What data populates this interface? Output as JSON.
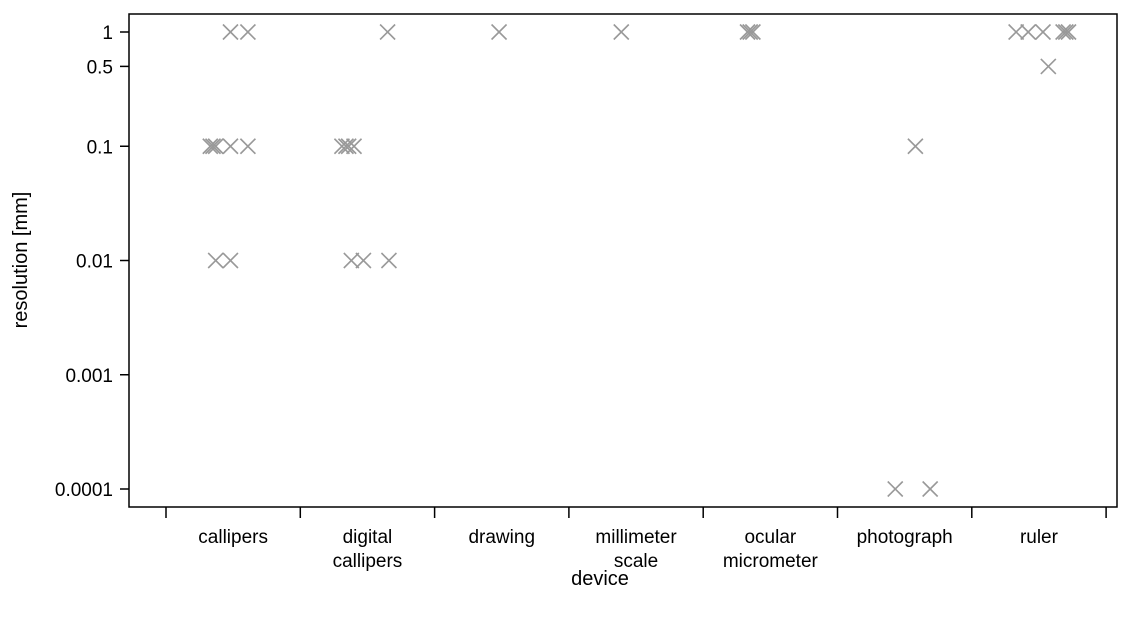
{
  "chart_data": {
    "type": "scatter",
    "xlabel": "device",
    "ylabel": "resolution [mm]",
    "y_scale": "log",
    "ylim": [
      0.0001,
      1
    ],
    "yticks": [
      "1",
      "0.5",
      "0.1",
      "0.01",
      "0.001",
      "0.0001"
    ],
    "ytick_values": [
      1,
      0.5,
      0.1,
      0.01,
      0.001,
      0.0001
    ],
    "categories": [
      [
        "callipers"
      ],
      [
        "digital",
        "callipers"
      ],
      [
        "drawing"
      ],
      [
        "millimeter",
        "scale"
      ],
      [
        "ocular",
        "micrometer"
      ],
      [
        "photograph"
      ],
      [
        "ruler"
      ]
    ],
    "marker": "x",
    "marker_color": "#999999",
    "grid": false,
    "points": [
      {
        "category": 0,
        "jitter": 0.48,
        "y": 1
      },
      {
        "category": 0,
        "jitter": 0.61,
        "y": 1
      },
      {
        "category": 0,
        "jitter": 0.33,
        "y": 0.1
      },
      {
        "category": 0,
        "jitter": 0.35,
        "y": 0.1
      },
      {
        "category": 0,
        "jitter": 0.37,
        "y": 0.1
      },
      {
        "category": 0,
        "jitter": 0.48,
        "y": 0.1
      },
      {
        "category": 0,
        "jitter": 0.61,
        "y": 0.1
      },
      {
        "category": 0,
        "jitter": 0.37,
        "y": 0.01
      },
      {
        "category": 0,
        "jitter": 0.48,
        "y": 0.01
      },
      {
        "category": 1,
        "jitter": 0.65,
        "y": 1
      },
      {
        "category": 1,
        "jitter": 0.31,
        "y": 0.1
      },
      {
        "category": 1,
        "jitter": 0.34,
        "y": 0.1
      },
      {
        "category": 1,
        "jitter": 0.36,
        "y": 0.1
      },
      {
        "category": 1,
        "jitter": 0.4,
        "y": 0.1
      },
      {
        "category": 1,
        "jitter": 0.38,
        "y": 0.01
      },
      {
        "category": 1,
        "jitter": 0.47,
        "y": 0.01
      },
      {
        "category": 1,
        "jitter": 0.66,
        "y": 0.01
      },
      {
        "category": 2,
        "jitter": 0.48,
        "y": 1
      },
      {
        "category": 3,
        "jitter": 0.39,
        "y": 1
      },
      {
        "category": 4,
        "jitter": 0.33,
        "y": 1
      },
      {
        "category": 4,
        "jitter": 0.35,
        "y": 1
      },
      {
        "category": 4,
        "jitter": 0.37,
        "y": 1
      },
      {
        "category": 5,
        "jitter": 0.58,
        "y": 0.1
      },
      {
        "category": 5,
        "jitter": 0.43,
        "y": 0.0001
      },
      {
        "category": 5,
        "jitter": 0.69,
        "y": 0.0001
      },
      {
        "category": 6,
        "jitter": 0.33,
        "y": 1
      },
      {
        "category": 6,
        "jitter": 0.42,
        "y": 1
      },
      {
        "category": 6,
        "jitter": 0.53,
        "y": 1
      },
      {
        "category": 6,
        "jitter": 0.68,
        "y": 1
      },
      {
        "category": 6,
        "jitter": 0.7,
        "y": 1
      },
      {
        "category": 6,
        "jitter": 0.72,
        "y": 1
      },
      {
        "category": 6,
        "jitter": 0.57,
        "y": 0.5
      }
    ]
  }
}
